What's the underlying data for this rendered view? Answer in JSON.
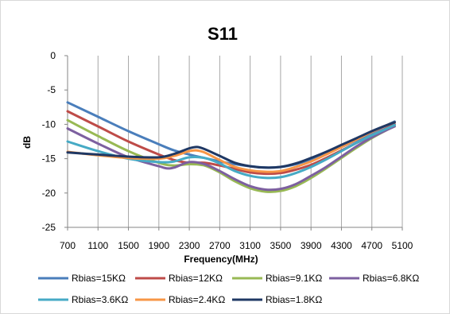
{
  "chart_data": {
    "type": "line",
    "title": "S11",
    "xlabel": "Frequency(MHz)",
    "ylabel": "dB",
    "xlim": [
      700,
      5100
    ],
    "ylim": [
      -25,
      0
    ],
    "xticks": [
      700,
      1100,
      1500,
      1900,
      2300,
      2700,
      3100,
      3500,
      3900,
      4300,
      4700,
      5100
    ],
    "yticks": [
      0,
      -5,
      -10,
      -15,
      -20,
      -25
    ],
    "grid": "vertical",
    "legend": "bottom",
    "series": [
      {
        "name": "Rbias=15KΩ",
        "color": "#4a7ebb",
        "x": [
          700,
          1100,
          1500,
          1900,
          2100,
          2300,
          2500,
          2700,
          2900,
          3100,
          3300,
          3500,
          3700,
          3900,
          4100,
          4300,
          4500,
          4700,
          4900,
          5000
        ],
        "y": [
          -6.8,
          -8.9,
          -11.0,
          -12.9,
          -13.8,
          -14.4,
          -14.9,
          -15.4,
          -15.8,
          -16.1,
          -16.3,
          -16.2,
          -15.8,
          -15.1,
          -14.3,
          -13.3,
          -12.3,
          -11.2,
          -10.1,
          -9.6
        ]
      },
      {
        "name": "Rbias=12KΩ",
        "color": "#be4b48",
        "x": [
          700,
          1100,
          1500,
          1900,
          2100,
          2300,
          2500,
          2700,
          2900,
          3100,
          3300,
          3500,
          3700,
          3900,
          4100,
          4300,
          4500,
          4700,
          4900,
          5000
        ],
        "y": [
          -8.1,
          -10.3,
          -12.5,
          -14.4,
          -15.2,
          -15.6,
          -15.6,
          -16.0,
          -16.5,
          -17.0,
          -17.2,
          -17.1,
          -16.6,
          -15.9,
          -14.9,
          -13.8,
          -12.7,
          -11.6,
          -10.5,
          -10.0
        ]
      },
      {
        "name": "Rbias=9.1KΩ",
        "color": "#98b954",
        "x": [
          700,
          1100,
          1500,
          1900,
          2100,
          2300,
          2500,
          2700,
          2900,
          3100,
          3300,
          3500,
          3700,
          3900,
          4100,
          4300,
          4500,
          4700,
          4900,
          5000
        ],
        "y": [
          -9.4,
          -11.7,
          -13.9,
          -15.6,
          -16.0,
          -15.8,
          -16.0,
          -17.0,
          -18.3,
          -19.3,
          -19.8,
          -19.7,
          -19.0,
          -17.8,
          -16.4,
          -14.9,
          -13.4,
          -12.0,
          -10.8,
          -10.3
        ]
      },
      {
        "name": "Rbias=6.8KΩ",
        "color": "#7d60a0",
        "x": [
          700,
          1100,
          1500,
          1900,
          2000,
          2100,
          2300,
          2500,
          2700,
          2900,
          3100,
          3300,
          3500,
          3700,
          3900,
          4100,
          4300,
          4500,
          4700,
          4900,
          5000
        ],
        "y": [
          -10.6,
          -12.8,
          -14.8,
          -16.1,
          -16.4,
          -16.3,
          -15.5,
          -15.8,
          -16.8,
          -18.0,
          -19.0,
          -19.5,
          -19.4,
          -18.7,
          -17.5,
          -16.2,
          -14.7,
          -13.2,
          -11.9,
          -10.8,
          -10.3
        ]
      },
      {
        "name": "Rbias=3.6KΩ",
        "color": "#46aac5",
        "x": [
          700,
          1100,
          1500,
          1900,
          2100,
          2300,
          2500,
          2700,
          2900,
          3100,
          3300,
          3500,
          3700,
          3900,
          4100,
          4300,
          4500,
          4700,
          4900,
          5000
        ],
        "y": [
          -12.5,
          -13.9,
          -15.0,
          -15.5,
          -15.4,
          -14.8,
          -14.9,
          -15.7,
          -16.8,
          -17.5,
          -17.8,
          -17.7,
          -17.1,
          -16.2,
          -15.1,
          -13.9,
          -12.7,
          -11.6,
          -10.6,
          -10.1
        ]
      },
      {
        "name": "Rbias=2.4KΩ",
        "color": "#f79646",
        "x": [
          700,
          1100,
          1500,
          1900,
          2100,
          2300,
          2400,
          2500,
          2700,
          2900,
          3100,
          3300,
          3500,
          3700,
          3900,
          4100,
          4300,
          4500,
          4700,
          4900,
          5000
        ],
        "y": [
          -14.0,
          -14.5,
          -14.9,
          -15.0,
          -14.6,
          -13.9,
          -13.8,
          -14.1,
          -15.2,
          -16.2,
          -16.7,
          -16.9,
          -16.8,
          -16.2,
          -15.4,
          -14.4,
          -13.3,
          -12.2,
          -11.1,
          -10.1,
          -9.7
        ]
      },
      {
        "name": "Rbias=1.8KΩ",
        "color": "#1f3864",
        "x": [
          700,
          1100,
          1500,
          1900,
          2100,
          2300,
          2400,
          2500,
          2700,
          2900,
          3100,
          3300,
          3500,
          3700,
          3900,
          4100,
          4300,
          4500,
          4700,
          4900,
          5000
        ],
        "y": [
          -14.1,
          -14.4,
          -14.7,
          -14.8,
          -14.3,
          -13.5,
          -13.3,
          -13.6,
          -14.6,
          -15.6,
          -16.1,
          -16.3,
          -16.2,
          -15.7,
          -14.9,
          -14.0,
          -13.0,
          -12.0,
          -11.0,
          -10.1,
          -9.7
        ]
      }
    ]
  }
}
